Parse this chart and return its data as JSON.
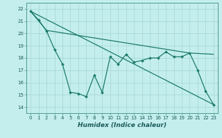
{
  "xlabel": "Humidex (Indice chaleur)",
  "bg_color": "#c4eeee",
  "grid_color": "#a8d8d8",
  "line_color": "#1a7a6a",
  "spine_color": "#4a9a8a",
  "xlim": [
    -0.5,
    23.5
  ],
  "ylim": [
    13.5,
    22.5
  ],
  "xticks": [
    0,
    1,
    2,
    3,
    4,
    5,
    6,
    7,
    8,
    9,
    10,
    11,
    12,
    13,
    14,
    15,
    16,
    17,
    18,
    19,
    20,
    21,
    22,
    23
  ],
  "yticks": [
    14,
    15,
    16,
    17,
    18,
    19,
    20,
    21,
    22
  ],
  "line1_x": [
    0,
    1,
    2,
    3,
    4,
    5,
    6,
    7,
    8,
    9,
    10,
    11,
    12,
    13,
    14,
    15,
    16,
    17,
    18,
    19,
    20,
    21,
    22,
    23
  ],
  "line1_y": [
    21.8,
    21.1,
    20.2,
    18.7,
    17.5,
    15.2,
    15.1,
    14.85,
    16.6,
    15.2,
    18.1,
    17.5,
    18.3,
    17.65,
    17.8,
    18.0,
    18.0,
    18.5,
    18.1,
    18.1,
    18.4,
    17.0,
    15.3,
    14.2
  ],
  "line2_x": [
    0,
    23
  ],
  "line2_y": [
    21.8,
    14.2
  ],
  "line3_x": [
    0,
    2,
    20,
    23
  ],
  "line3_y": [
    21.8,
    20.25,
    18.4,
    18.3
  ],
  "xlabel_fontsize": 6.5,
  "tick_fontsize": 5.0,
  "linewidth": 0.9,
  "markersize": 2.0
}
